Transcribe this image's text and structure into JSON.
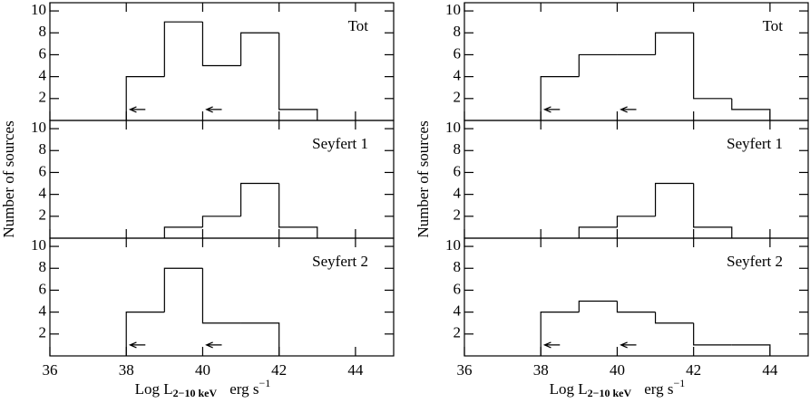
{
  "chart_data": [
    {
      "type": "histogram",
      "label": "Tot",
      "bins": [
        38,
        39,
        40,
        41,
        42,
        43
      ],
      "counts": [
        4,
        9,
        5,
        8,
        1
      ],
      "xlim": [
        36,
        45
      ],
      "xticks": [
        36,
        38,
        40,
        42,
        44
      ],
      "ylim": [
        0,
        10.75
      ],
      "yticks": [
        2,
        4,
        6,
        8,
        10
      ],
      "arrows": [
        {
          "x": 38.5,
          "y": 1
        },
        {
          "x": 40.5,
          "y": 1
        }
      ]
    },
    {
      "type": "histogram",
      "label": "Seyfert 1",
      "bins": [
        39,
        40,
        41,
        42,
        43
      ],
      "counts": [
        1,
        2,
        5,
        1
      ],
      "xlim": [
        36,
        45
      ],
      "xticks": [
        36,
        38,
        40,
        42,
        44
      ],
      "ylim": [
        0,
        10.75
      ],
      "yticks": [
        2,
        4,
        6,
        8,
        10
      ],
      "ylabel": "Number of sources"
    },
    {
      "type": "histogram",
      "label": "Seyfert 2",
      "bins": [
        38,
        39,
        40,
        41,
        42
      ],
      "counts": [
        4,
        8,
        3,
        3
      ],
      "xlim": [
        36,
        45
      ],
      "xticks": [
        36,
        38,
        40,
        42,
        44
      ],
      "ylim": [
        0,
        10.75
      ],
      "yticks": [
        2,
        4,
        6,
        8,
        10
      ],
      "arrows": [
        {
          "x": 38.5,
          "y": 1
        },
        {
          "x": 40.5,
          "y": 1
        }
      ],
      "xlabel": {
        "main": "Log L",
        "subscript": "2−10 keV",
        "unit": "erg  s",
        "superscript": "−1"
      }
    },
    {
      "type": "histogram",
      "label": "Tot",
      "bins": [
        38,
        39,
        40,
        41,
        42,
        43,
        44
      ],
      "counts": [
        4,
        6,
        6,
        8,
        2,
        1
      ],
      "xlim": [
        36,
        45
      ],
      "xticks": [
        36,
        38,
        40,
        42,
        44
      ],
      "ylim": [
        0,
        10.75
      ],
      "yticks": [
        2,
        4,
        6,
        8,
        10
      ],
      "arrows": [
        {
          "x": 38.5,
          "y": 1
        },
        {
          "x": 40.5,
          "y": 1
        }
      ]
    },
    {
      "type": "histogram",
      "label": "Seyfert 1",
      "bins": [
        39,
        40,
        41,
        42,
        43
      ],
      "counts": [
        1,
        2,
        5,
        1
      ],
      "xlim": [
        36,
        45
      ],
      "xticks": [
        36,
        38,
        40,
        42,
        44
      ],
      "ylim": [
        0,
        10.75
      ],
      "yticks": [
        2,
        4,
        6,
        8,
        10
      ],
      "ylabel": "Number of sources"
    },
    {
      "type": "histogram",
      "label": "Seyfert 2",
      "bins": [
        38,
        39,
        40,
        41,
        42,
        43,
        44
      ],
      "counts": [
        4,
        5,
        4,
        3,
        1,
        1
      ],
      "xlim": [
        36,
        45
      ],
      "xticks": [
        36,
        38,
        40,
        42,
        44
      ],
      "ylim": [
        0,
        10.75
      ],
      "yticks": [
        2,
        4,
        6,
        8,
        10
      ],
      "arrows": [
        {
          "x": 38.5,
          "y": 1
        },
        {
          "x": 40.5,
          "y": 1
        }
      ],
      "xlabel": {
        "main": "Log L",
        "subscript": "2−10 keV",
        "unit": "erg  s",
        "superscript": "−1"
      }
    }
  ]
}
